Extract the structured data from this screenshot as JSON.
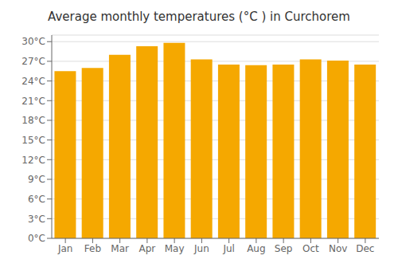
{
  "chart_data": {
    "type": "bar",
    "title": "Average monthly temperatures (°C ) in Curchorem",
    "categories": [
      "Jan",
      "Feb",
      "Mar",
      "Apr",
      "May",
      "Jun",
      "Jul",
      "Aug",
      "Sep",
      "Oct",
      "Nov",
      "Dec"
    ],
    "values": [
      25.5,
      26.0,
      28.0,
      29.3,
      29.8,
      27.3,
      26.5,
      26.4,
      26.5,
      27.3,
      27.1,
      26.5
    ],
    "color": "#F5A800",
    "ylim": [
      0,
      31
    ],
    "yticks": [
      {
        "value": 0,
        "label": "0°C"
      },
      {
        "value": 3,
        "label": "3°C"
      },
      {
        "value": 6,
        "label": "6°C"
      },
      {
        "value": 9,
        "label": "9°C"
      },
      {
        "value": 12,
        "label": "12°C"
      },
      {
        "value": 15,
        "label": "15°C"
      },
      {
        "value": 18,
        "label": "18°C"
      },
      {
        "value": 21,
        "label": "21°C"
      },
      {
        "value": 24,
        "label": "24°C"
      },
      {
        "value": 27,
        "label": "27°C"
      },
      {
        "value": 30,
        "label": "30°C"
      }
    ],
    "grid": true
  }
}
